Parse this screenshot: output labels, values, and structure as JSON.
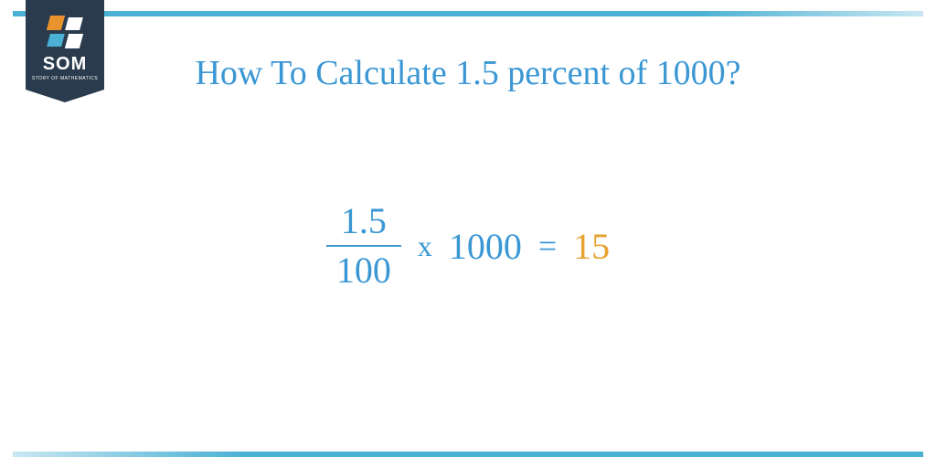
{
  "logo": {
    "text": "SOM",
    "subtext": "STORY OF MATHEMATICS"
  },
  "title": {
    "text": "How To Calculate 1.5 percent of 1000?",
    "color": "#3a97d4",
    "fontsize": 38
  },
  "equation": {
    "fraction": {
      "numerator": "1.5",
      "denominator": "100",
      "color": "#3a97d4"
    },
    "multiply_symbol": "x",
    "multiply_color": "#3a97d4",
    "multiplicand": "1000",
    "multiplicand_color": "#3a97d4",
    "equals_symbol": "=",
    "equals_color": "#3a97d4",
    "result": "15",
    "result_color": "#e8a02e",
    "fontsize": 40
  },
  "colors": {
    "border": "#4bb1d4",
    "badge_bg": "#2a3b4d",
    "badge_text": "#ffffff",
    "background": "#ffffff",
    "accent_orange": "#e8932e",
    "accent_blue": "#4bb1d4"
  }
}
